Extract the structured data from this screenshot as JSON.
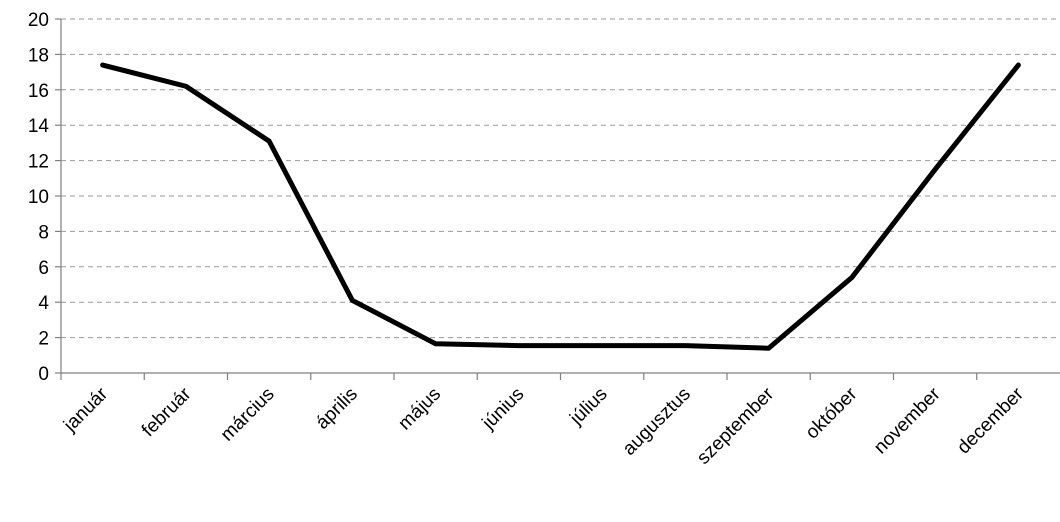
{
  "chart_data": {
    "type": "line",
    "categories": [
      "január",
      "február",
      "március",
      "április",
      "május",
      "június",
      "július",
      "augusztus",
      "szeptember",
      "október",
      "november",
      "december"
    ],
    "series": [
      {
        "values": [
          17.4,
          16.2,
          13.1,
          4.1,
          1.65,
          1.55,
          1.55,
          1.55,
          1.4,
          5.4,
          11.5,
          17.4
        ]
      }
    ],
    "yticks": [
      0,
      2,
      4,
      6,
      8,
      10,
      12,
      14,
      16,
      18,
      20
    ],
    "ylim": [
      0,
      20
    ],
    "grid": true,
    "line_color": "#000000"
  }
}
